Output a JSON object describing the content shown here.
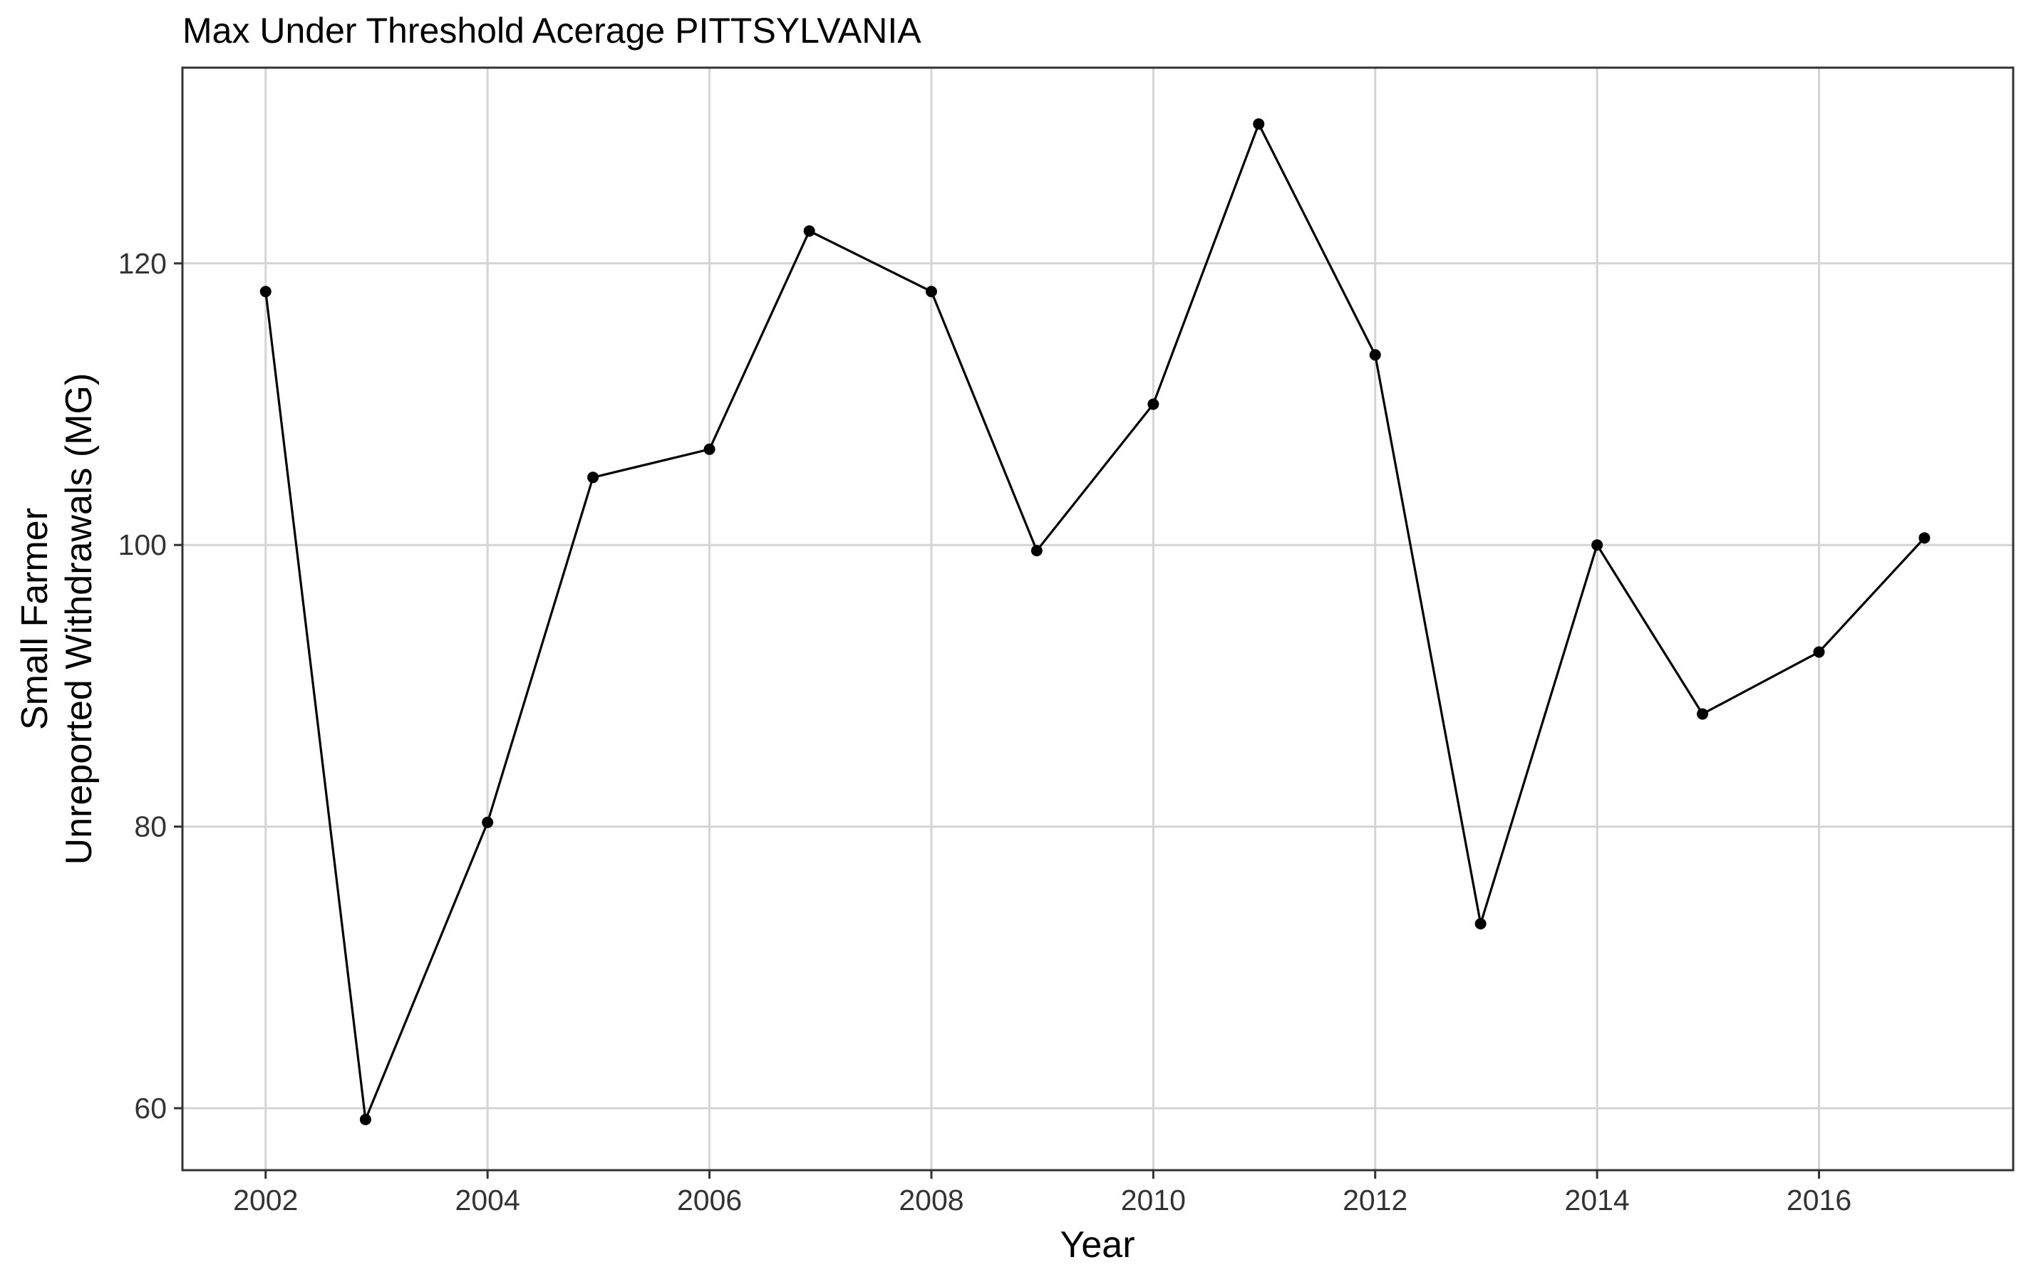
{
  "chart_data": {
    "type": "line",
    "title": "Max Under Threshold Acerage PITTSYLVANIA",
    "xlabel": "Year",
    "ylabel_lines": [
      "Small Farmer",
      "Unreported Withdrawals (MG)"
    ],
    "x_ticks": [
      2002,
      2004,
      2006,
      2008,
      2010,
      2012,
      2014,
      2016
    ],
    "y_ticks": [
      60,
      80,
      100,
      120
    ],
    "xlim": [
      2001.25,
      2017.75
    ],
    "ylim": [
      55.6,
      133.9
    ],
    "grid": true,
    "series": [
      {
        "x": [
          2002,
          2002.9,
          2004,
          2004.95,
          2006,
          2006.9,
          2008,
          2008.95,
          2010,
          2010.95,
          2012,
          2012.95,
          2014,
          2014.95,
          2016,
          2016.95
        ],
        "values": [
          118,
          59.2,
          80.3,
          104.8,
          106.8,
          122.3,
          118,
          99.6,
          110,
          129.9,
          113.5,
          73.1,
          100,
          88,
          92.4,
          100.5
        ]
      }
    ]
  }
}
